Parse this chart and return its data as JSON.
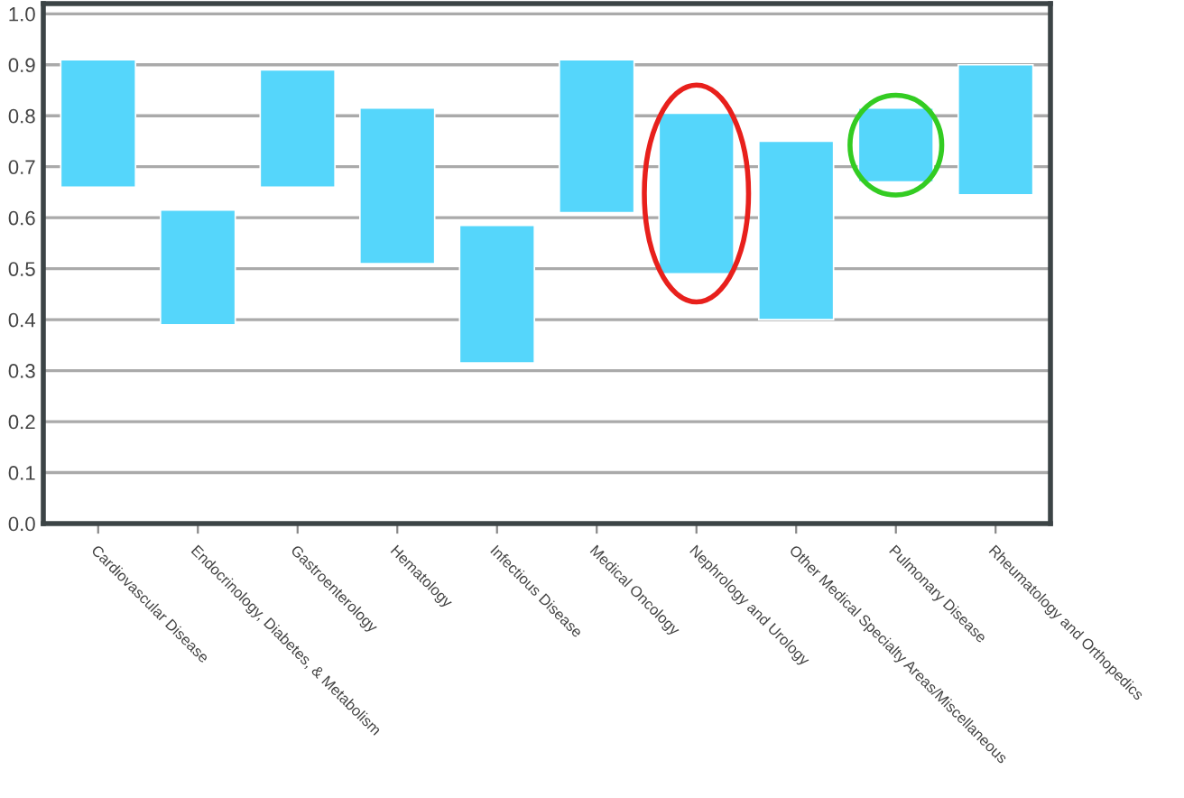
{
  "chart_data": {
    "type": "bar",
    "categories": [
      "Cardiovascular Disease",
      "Endocrinology, Diabetes, & Metabolism",
      "Gastroenterology",
      "Hematology",
      "Infectious Disease",
      "Medical Oncology",
      "Nephrology and Urology",
      "Other Medical Specialty Areas/Miscellaneous",
      "Pulmonary Disease",
      "Rheumatology and Orthopedics"
    ],
    "base": [
      0.66,
      0.39,
      0.66,
      0.51,
      0.315,
      0.61,
      0.49,
      0.4,
      0.67,
      0.645
    ],
    "values": [
      0.25,
      0.225,
      0.23,
      0.305,
      0.27,
      0.3,
      0.315,
      0.35,
      0.145,
      0.255
    ],
    "color": "#55d6fb",
    "ylim": [
      0.0,
      1.02
    ],
    "yticks": [
      {
        "value": 0,
        "label": "0.0"
      },
      0.1,
      0.2,
      0.3,
      0.4,
      0.5,
      0.6,
      0.7,
      0.8,
      0.9,
      {
        "value": 1,
        "label": "1.0"
      }
    ],
    "grid": "y",
    "legend": false
  }
}
